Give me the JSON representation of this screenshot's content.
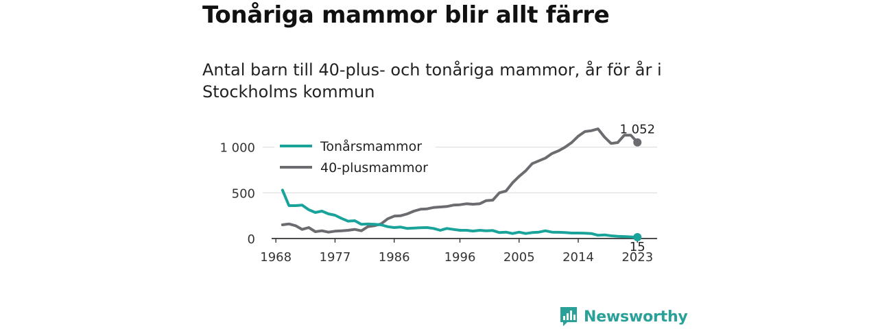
{
  "header": {
    "title": "Tonåriga mammor blir allt färre",
    "subtitle": "Antal barn till 40-plus- och tonåriga mammor, år för år i Stockholms kommun"
  },
  "brand": {
    "name": "Newsworthy",
    "icon": "bar-chart-speech-bubble-icon"
  },
  "colors": {
    "teen": "#1aa39a",
    "plus40": "#6b6b70",
    "grid": "#dddddd",
    "axis": "#333333"
  },
  "chart_data": {
    "type": "line",
    "title": "Tonåriga mammor blir allt färre",
    "subtitle": "Antal barn till 40-plus- och tonåriga mammor, år för år i Stockholms kommun",
    "xlabel": "",
    "ylabel": "",
    "xlim": [
      1966,
      2026
    ],
    "ylim": [
      0,
      1200
    ],
    "x_ticks": [
      1968,
      1977,
      1986,
      1996,
      2005,
      2014,
      2023
    ],
    "x_tick_labels": [
      "1968",
      "1977",
      "1986",
      "1996",
      "2005",
      "2014",
      "2023"
    ],
    "y_ticks": [
      0,
      500,
      1000
    ],
    "y_tick_labels": [
      "0",
      "500",
      "1 000"
    ],
    "grid": "horizontal",
    "legend_position": "top-left",
    "x": [
      1969,
      1970,
      1971,
      1972,
      1973,
      1974,
      1975,
      1976,
      1977,
      1978,
      1979,
      1980,
      1981,
      1982,
      1983,
      1984,
      1985,
      1986,
      1987,
      1988,
      1989,
      1990,
      1991,
      1992,
      1993,
      1994,
      1995,
      1996,
      1997,
      1998,
      1999,
      2000,
      2001,
      2002,
      2003,
      2004,
      2005,
      2006,
      2007,
      2008,
      2009,
      2010,
      2011,
      2012,
      2013,
      2014,
      2015,
      2016,
      2017,
      2018,
      2019,
      2020,
      2021,
      2022,
      2023
    ],
    "series": [
      {
        "name": "Tonårsmammor",
        "color": "#1aa39a",
        "end_label": "15",
        "values": [
          530,
          360,
          360,
          365,
          315,
          285,
          300,
          270,
          255,
          220,
          190,
          195,
          155,
          160,
          155,
          150,
          130,
          120,
          125,
          110,
          115,
          118,
          120,
          110,
          90,
          110,
          100,
          90,
          90,
          82,
          90,
          85,
          88,
          65,
          70,
          55,
          70,
          55,
          65,
          70,
          85,
          70,
          68,
          65,
          60,
          60,
          58,
          55,
          35,
          40,
          30,
          25,
          22,
          18,
          15
        ]
      },
      {
        "name": "40-plusmammor",
        "color": "#6b6b70",
        "end_label": "1 052",
        "values": [
          150,
          160,
          140,
          100,
          120,
          75,
          85,
          70,
          80,
          85,
          90,
          100,
          85,
          130,
          140,
          160,
          215,
          245,
          250,
          270,
          300,
          320,
          325,
          340,
          345,
          350,
          365,
          370,
          380,
          375,
          380,
          415,
          420,
          500,
          520,
          610,
          680,
          740,
          820,
          850,
          880,
          930,
          960,
          1000,
          1050,
          1120,
          1170,
          1180,
          1200,
          1110,
          1040,
          1050,
          1130,
          1130,
          1052
        ]
      }
    ]
  }
}
